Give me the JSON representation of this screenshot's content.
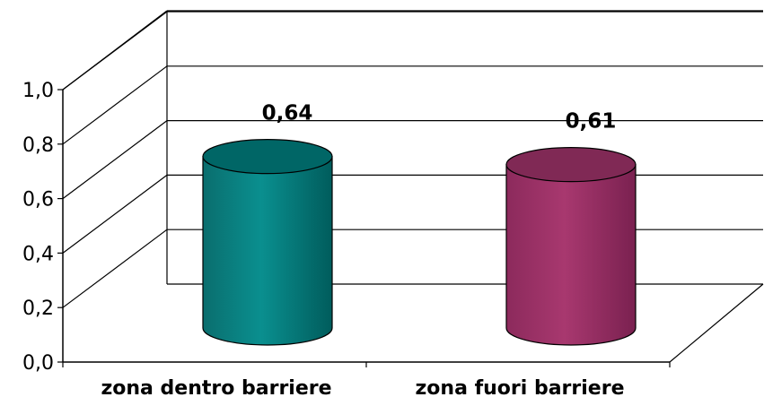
{
  "chart_data": {
    "type": "bar",
    "style": "3d-cylinder",
    "categories": [
      "zona dentro barriere",
      "zona fuori barriere"
    ],
    "values": [
      0.64,
      0.61
    ],
    "value_labels": [
      "0,64",
      "0,61"
    ],
    "ylim": [
      0,
      1.0
    ],
    "yticks": [
      "0,0",
      "0,2",
      "0,4",
      "0,6",
      "0,8",
      "1,0"
    ],
    "grid": true,
    "colors": {
      "bar1": "#008080",
      "bar2": "#a0336a"
    }
  }
}
